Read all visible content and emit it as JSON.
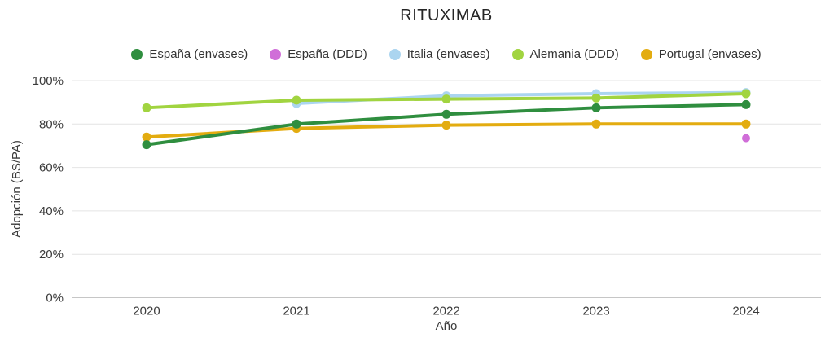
{
  "chart_data": {
    "type": "line",
    "title": "RITUXIMAB",
    "xlabel": "Año",
    "ylabel": "Adopción (BS/PA)",
    "x_tick_labels": [
      "2020",
      "2021",
      "2022",
      "2023",
      "2024"
    ],
    "y_tick_labels": [
      "0%",
      "20%",
      "40%",
      "60%",
      "80%",
      "100%"
    ],
    "y_ticks": [
      0,
      20,
      40,
      60,
      80,
      100
    ],
    "ylim": [
      0,
      100
    ],
    "grid": true,
    "legend_position": "top",
    "series": [
      {
        "name": "España (envases)",
        "color": "#2f8e3f",
        "points": [
          [
            2020,
            70.5
          ],
          [
            2021,
            80
          ],
          [
            2022,
            84.5
          ],
          [
            2023,
            87.5
          ],
          [
            2024,
            89
          ]
        ]
      },
      {
        "name": "España (DDD)",
        "color": "#d06ed8",
        "points": [
          [
            2024,
            73.5
          ]
        ]
      },
      {
        "name": "Italia (envases)",
        "color": "#abd5f0",
        "points": [
          [
            2021,
            89.5
          ],
          [
            2022,
            93
          ],
          [
            2023,
            94
          ],
          [
            2024,
            94.5
          ]
        ]
      },
      {
        "name": "Alemania (DDD)",
        "color": "#a1d440",
        "points": [
          [
            2020,
            87.5
          ],
          [
            2021,
            91
          ],
          [
            2022,
            91.5
          ],
          [
            2023,
            92
          ],
          [
            2024,
            94
          ]
        ]
      },
      {
        "name": "Portugal (envases)",
        "color": "#e3ac10",
        "points": [
          [
            2020,
            74
          ],
          [
            2021,
            78
          ],
          [
            2022,
            79.5
          ],
          [
            2023,
            80
          ],
          [
            2024,
            80
          ]
        ]
      }
    ],
    "colors": {
      "grid": "#e4e4e4",
      "axis_line": "#c6c6c6",
      "text": "#3b3b3b"
    }
  }
}
